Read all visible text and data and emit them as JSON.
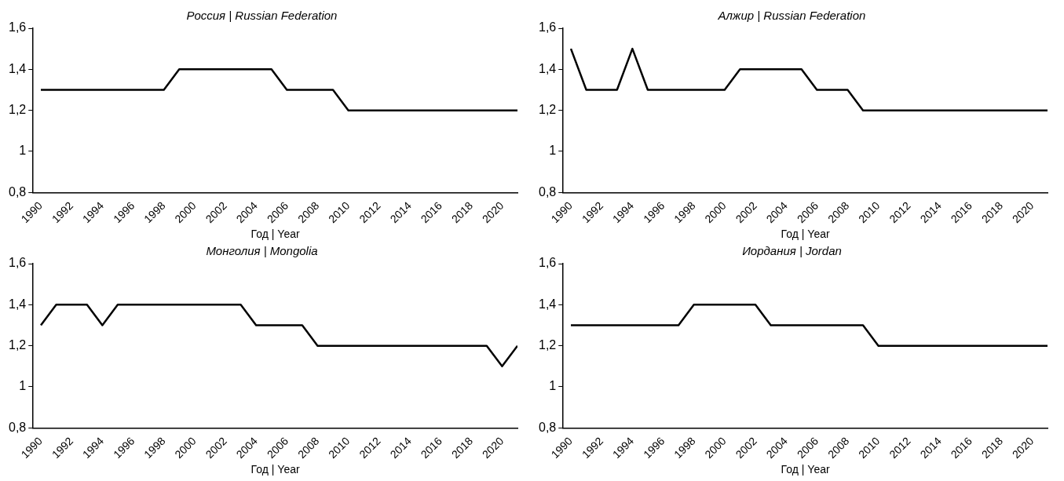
{
  "chart_data": [
    {
      "type": "line",
      "title": "Россия | Russian Federation",
      "xlabel": "Год | Year",
      "color": "#000000",
      "x": [
        1990,
        1991,
        1992,
        1993,
        1994,
        1995,
        1996,
        1997,
        1998,
        1999,
        2000,
        2001,
        2002,
        2003,
        2004,
        2005,
        2006,
        2007,
        2008,
        2009,
        2010,
        2011,
        2012,
        2013,
        2014,
        2015,
        2016,
        2017,
        2018,
        2019,
        2020,
        2021
      ],
      "values": [
        1.3,
        1.3,
        1.3,
        1.3,
        1.3,
        1.3,
        1.3,
        1.3,
        1.3,
        1.4,
        1.4,
        1.4,
        1.4,
        1.4,
        1.4,
        1.4,
        1.3,
        1.3,
        1.3,
        1.3,
        1.2,
        1.2,
        1.2,
        1.2,
        1.2,
        1.2,
        1.2,
        1.2,
        1.2,
        1.2,
        1.2,
        1.2
      ],
      "xlim": [
        1989.5,
        2021
      ],
      "xticks": [
        1990,
        1992,
        1994,
        1996,
        1998,
        2000,
        2002,
        2004,
        2006,
        2008,
        2010,
        2012,
        2014,
        2016,
        2018,
        2020
      ],
      "ylim": [
        0.8,
        1.6
      ],
      "yticks": [
        {
          "value": 0.8,
          "label": "0,8"
        },
        {
          "value": 1,
          "label": "1"
        },
        {
          "value": 1.2,
          "label": "1,2"
        },
        {
          "value": 1.4,
          "label": "1,4"
        },
        {
          "value": 1.6,
          "label": "1,6"
        }
      ],
      "grid": false,
      "legend": false
    },
    {
      "type": "line",
      "title": "Алжир | Russian Federation",
      "xlabel": "Год | Year",
      "color": "#000000",
      "x": [
        1990,
        1991,
        1992,
        1993,
        1994,
        1995,
        1996,
        1997,
        1998,
        1999,
        2000,
        2001,
        2002,
        2003,
        2004,
        2005,
        2006,
        2007,
        2008,
        2009,
        2010,
        2011,
        2012,
        2013,
        2014,
        2015,
        2016,
        2017,
        2018,
        2019,
        2020,
        2021
      ],
      "values": [
        1.5,
        1.3,
        1.3,
        1.3,
        1.5,
        1.3,
        1.3,
        1.3,
        1.3,
        1.3,
        1.3,
        1.4,
        1.4,
        1.4,
        1.4,
        1.4,
        1.3,
        1.3,
        1.3,
        1.2,
        1.2,
        1.2,
        1.2,
        1.2,
        1.2,
        1.2,
        1.2,
        1.2,
        1.2,
        1.2,
        1.2,
        1.2
      ],
      "xlim": [
        1989.5,
        2021
      ],
      "xticks": [
        1990,
        1992,
        1994,
        1996,
        1998,
        2000,
        2002,
        2004,
        2006,
        2008,
        2010,
        2012,
        2014,
        2016,
        2018,
        2020
      ],
      "ylim": [
        0.8,
        1.6
      ],
      "yticks": [
        {
          "value": 0.8,
          "label": "0,8"
        },
        {
          "value": 1,
          "label": "1"
        },
        {
          "value": 1.2,
          "label": "1,2"
        },
        {
          "value": 1.4,
          "label": "1,4"
        },
        {
          "value": 1.6,
          "label": "1,6"
        }
      ],
      "grid": false,
      "legend": false
    },
    {
      "type": "line",
      "title": "Монголия | Mongolia",
      "xlabel": "Год | Year",
      "color": "#000000",
      "x": [
        1990,
        1991,
        1992,
        1993,
        1994,
        1995,
        1996,
        1997,
        1998,
        1999,
        2000,
        2001,
        2002,
        2003,
        2004,
        2005,
        2006,
        2007,
        2008,
        2009,
        2010,
        2011,
        2012,
        2013,
        2014,
        2015,
        2016,
        2017,
        2018,
        2019,
        2020,
        2021
      ],
      "values": [
        1.3,
        1.4,
        1.4,
        1.4,
        1.3,
        1.4,
        1.4,
        1.4,
        1.4,
        1.4,
        1.4,
        1.4,
        1.4,
        1.4,
        1.3,
        1.3,
        1.3,
        1.3,
        1.2,
        1.2,
        1.2,
        1.2,
        1.2,
        1.2,
        1.2,
        1.2,
        1.2,
        1.2,
        1.2,
        1.2,
        1.1,
        1.2
      ],
      "xlim": [
        1989.5,
        2021
      ],
      "xticks": [
        1990,
        1992,
        1994,
        1996,
        1998,
        2000,
        2002,
        2004,
        2006,
        2008,
        2010,
        2012,
        2014,
        2016,
        2018,
        2020
      ],
      "ylim": [
        0.8,
        1.6
      ],
      "yticks": [
        {
          "value": 0.8,
          "label": "0,8"
        },
        {
          "value": 1,
          "label": "1"
        },
        {
          "value": 1.2,
          "label": "1,2"
        },
        {
          "value": 1.4,
          "label": "1,4"
        },
        {
          "value": 1.6,
          "label": "1,6"
        }
      ],
      "grid": false,
      "legend": false
    },
    {
      "type": "line",
      "title": "Иордания | Jordan",
      "xlabel": "Год | Year",
      "color": "#000000",
      "x": [
        1990,
        1991,
        1992,
        1993,
        1994,
        1995,
        1996,
        1997,
        1998,
        1999,
        2000,
        2001,
        2002,
        2003,
        2004,
        2005,
        2006,
        2007,
        2008,
        2009,
        2010,
        2011,
        2012,
        2013,
        2014,
        2015,
        2016,
        2017,
        2018,
        2019,
        2020,
        2021
      ],
      "values": [
        1.3,
        1.3,
        1.3,
        1.3,
        1.3,
        1.3,
        1.3,
        1.3,
        1.4,
        1.4,
        1.4,
        1.4,
        1.4,
        1.3,
        1.3,
        1.3,
        1.3,
        1.3,
        1.3,
        1.3,
        1.2,
        1.2,
        1.2,
        1.2,
        1.2,
        1.2,
        1.2,
        1.2,
        1.2,
        1.2,
        1.2,
        1.2
      ],
      "xlim": [
        1989.5,
        2021
      ],
      "xticks": [
        1990,
        1992,
        1994,
        1996,
        1998,
        2000,
        2002,
        2004,
        2006,
        2008,
        2010,
        2012,
        2014,
        2016,
        2018,
        2020
      ],
      "ylim": [
        0.8,
        1.6
      ],
      "yticks": [
        {
          "value": 0.8,
          "label": "0,8"
        },
        {
          "value": 1,
          "label": "1"
        },
        {
          "value": 1.2,
          "label": "1,2"
        },
        {
          "value": 1.4,
          "label": "1,4"
        },
        {
          "value": 1.6,
          "label": "1,6"
        }
      ],
      "grid": false,
      "legend": false
    }
  ]
}
